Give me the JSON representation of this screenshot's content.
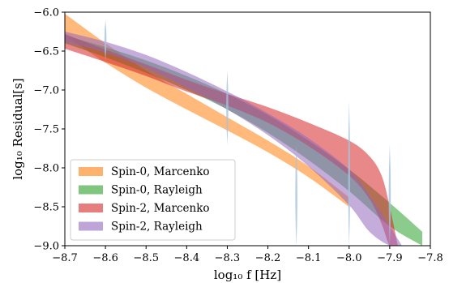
{
  "chart_data": {
    "type": "area",
    "xlabel": "log₁₀ f [Hz]",
    "ylabel": "log₁₀ Residual[s]",
    "xlim": [
      -8.7,
      -7.8
    ],
    "ylim": [
      -9.0,
      -6.0
    ],
    "x_ticks": [
      -8.7,
      -8.6,
      -8.5,
      -8.4,
      -8.3,
      -8.2,
      -8.1,
      -8.0,
      -7.9,
      -7.8
    ],
    "x_tick_labels": [
      "−8.7",
      "−8.6",
      "−8.5",
      "−8.4",
      "−8.3",
      "−8.2",
      "−8.1",
      "−8.0",
      "−7.9",
      "−7.8"
    ],
    "y_ticks": [
      -9.0,
      -8.5,
      -8.0,
      -7.5,
      -7.0,
      -6.5,
      -6.0
    ],
    "y_tick_labels": [
      "−9.0",
      "−8.5",
      "−8.0",
      "−7.5",
      "−7.0",
      "−6.5",
      "−6.0"
    ],
    "grid": false,
    "legend_position": "lower-left",
    "series": [
      {
        "name": "Spin-0, Marcenko",
        "color": "#ff7f0e",
        "x": [
          -8.7,
          -8.6,
          -8.5,
          -8.4,
          -8.3,
          -8.2,
          -8.1,
          -8.0
        ],
        "upper": [
          -6.02,
          -6.4,
          -6.75,
          -7.05,
          -7.35,
          -7.65,
          -7.98,
          -8.38
        ],
        "lower": [
          -6.3,
          -6.65,
          -6.97,
          -7.25,
          -7.52,
          -7.8,
          -8.12,
          -8.5
        ]
      },
      {
        "name": "Spin-0, Rayleigh",
        "color": "#2ca02c",
        "x": [
          -8.7,
          -8.6,
          -8.5,
          -8.4,
          -8.3,
          -8.2,
          -8.1,
          -8.0,
          -7.9,
          -7.82
        ],
        "upper": [
          -6.3,
          -6.45,
          -6.62,
          -6.82,
          -7.05,
          -7.32,
          -7.65,
          -8.02,
          -8.45,
          -8.82
        ],
        "lower": [
          -6.4,
          -6.58,
          -6.78,
          -7.0,
          -7.25,
          -7.55,
          -7.9,
          -8.3,
          -8.75,
          -9.0
        ]
      },
      {
        "name": "Spin-2, Marcenko",
        "color": "#d62728",
        "x": [
          -8.7,
          -8.6,
          -8.5,
          -8.4,
          -8.3,
          -8.2,
          -8.1,
          -8.0,
          -7.95,
          -7.92,
          -7.9,
          -7.88
        ],
        "upper": [
          -6.28,
          -6.48,
          -6.67,
          -6.87,
          -7.05,
          -7.22,
          -7.42,
          -7.65,
          -7.85,
          -8.1,
          -8.5,
          -9.0
        ],
        "lower": [
          -6.47,
          -6.64,
          -6.82,
          -7.02,
          -7.2,
          -7.42,
          -7.72,
          -8.1,
          -8.4,
          -8.72,
          -9.0,
          -9.0
        ]
      },
      {
        "name": "Spin-2, Rayleigh",
        "color": "#9467bd",
        "x": [
          -8.7,
          -8.6,
          -8.5,
          -8.4,
          -8.3,
          -8.2,
          -8.1,
          -8.0,
          -7.95,
          -7.9,
          -7.87
        ],
        "upper": [
          -6.25,
          -6.38,
          -6.55,
          -6.77,
          -7.02,
          -7.3,
          -7.62,
          -8.02,
          -8.35,
          -8.75,
          -9.0
        ],
        "lower": [
          -6.38,
          -6.52,
          -6.72,
          -6.97,
          -7.25,
          -7.58,
          -7.98,
          -8.48,
          -8.82,
          -9.0,
          -9.0
        ]
      }
    ],
    "spikes": {
      "color": "#a6c3dc",
      "items": [
        {
          "x": -8.6,
          "y_top": -6.1,
          "y_bottom": -6.62
        },
        {
          "x": -8.3,
          "y_top": -6.75,
          "y_bottom": -7.7
        },
        {
          "x": -8.13,
          "y_top": -7.7,
          "y_bottom": -9.0
        },
        {
          "x": -8.0,
          "y_top": -7.15,
          "y_bottom": -9.0
        },
        {
          "x": -7.9,
          "y_top": -7.7,
          "y_bottom": -9.0
        }
      ]
    }
  }
}
